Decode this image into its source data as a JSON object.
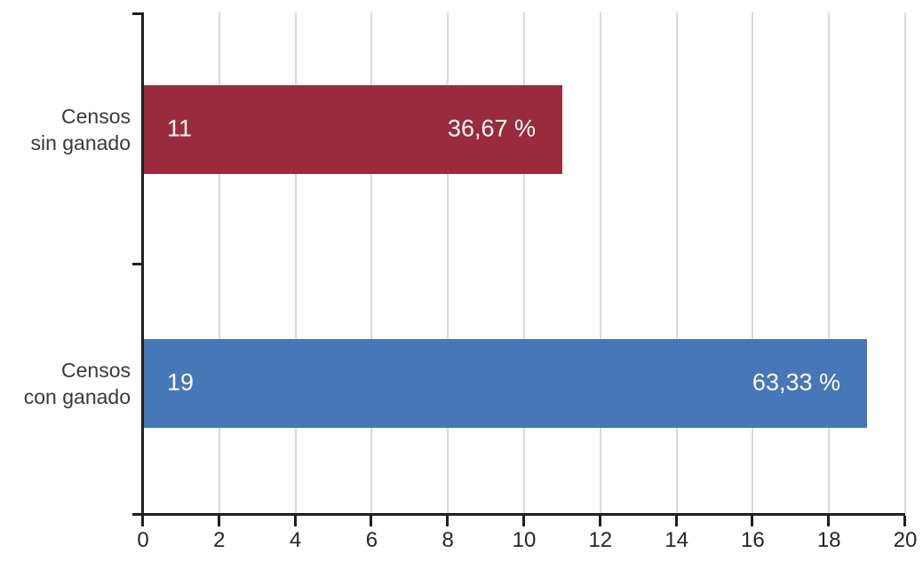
{
  "chart_data": {
    "type": "bar",
    "orientation": "horizontal",
    "title": "",
    "xlabel": "",
    "ylabel": "",
    "categories": [
      "Censos sin ganado",
      "Censos con ganado"
    ],
    "category_lines": [
      [
        "Censos",
        "sin ganado"
      ],
      [
        "Censos",
        "con ganado"
      ]
    ],
    "values": [
      11,
      19
    ],
    "value_labels": [
      "11",
      "19"
    ],
    "percent_labels": [
      "36,67 %",
      "63,33 %"
    ],
    "bar_colors": [
      "#9a2b3e",
      "#4677b9"
    ],
    "xlim": [
      0,
      20
    ],
    "x_tick_values": [
      0,
      2,
      4,
      6,
      8,
      10,
      12,
      14,
      16,
      18,
      20
    ],
    "x_tick_labels": [
      "0",
      "2",
      "4",
      "6",
      "8",
      "10",
      "12",
      "14",
      "16",
      "18",
      "20"
    ],
    "grid": true,
    "legend": false
  },
  "colors": {
    "background": "#ffffff",
    "axis": "#1f1f1f",
    "gridline": "#d9d9d9",
    "tick_label_text": "#262626",
    "category_label_text": "#3a3a3a",
    "bar_value_text": "#ffffff"
  }
}
